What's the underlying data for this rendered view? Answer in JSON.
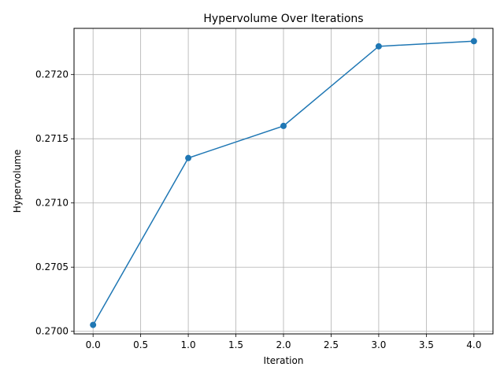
{
  "chart_data": {
    "type": "line",
    "title": "Hypervolume Over Iterations",
    "xlabel": "Iteration",
    "ylabel": "Hypervolume",
    "xlim": [
      -0.2,
      4.2
    ],
    "ylim": [
      0.26998,
      0.27236
    ],
    "xticks": [
      0.0,
      0.5,
      1.0,
      1.5,
      2.0,
      2.5,
      3.0,
      3.5,
      4.0
    ],
    "xtick_labels": [
      "0.0",
      "0.5",
      "1.0",
      "1.5",
      "2.0",
      "2.5",
      "3.0",
      "3.5",
      "4.0"
    ],
    "yticks": [
      0.27,
      0.2705,
      0.271,
      0.2715,
      0.272
    ],
    "ytick_labels": [
      "0.2700",
      "0.2705",
      "0.2710",
      "0.2715",
      "0.2720"
    ],
    "grid": true,
    "series": [
      {
        "name": "Hypervolume",
        "color": "#1f77b4",
        "marker": "circle",
        "x": [
          0,
          1,
          2,
          3,
          4
        ],
        "y": [
          0.27005,
          0.27135,
          0.2716,
          0.27222,
          0.27226
        ]
      }
    ]
  }
}
